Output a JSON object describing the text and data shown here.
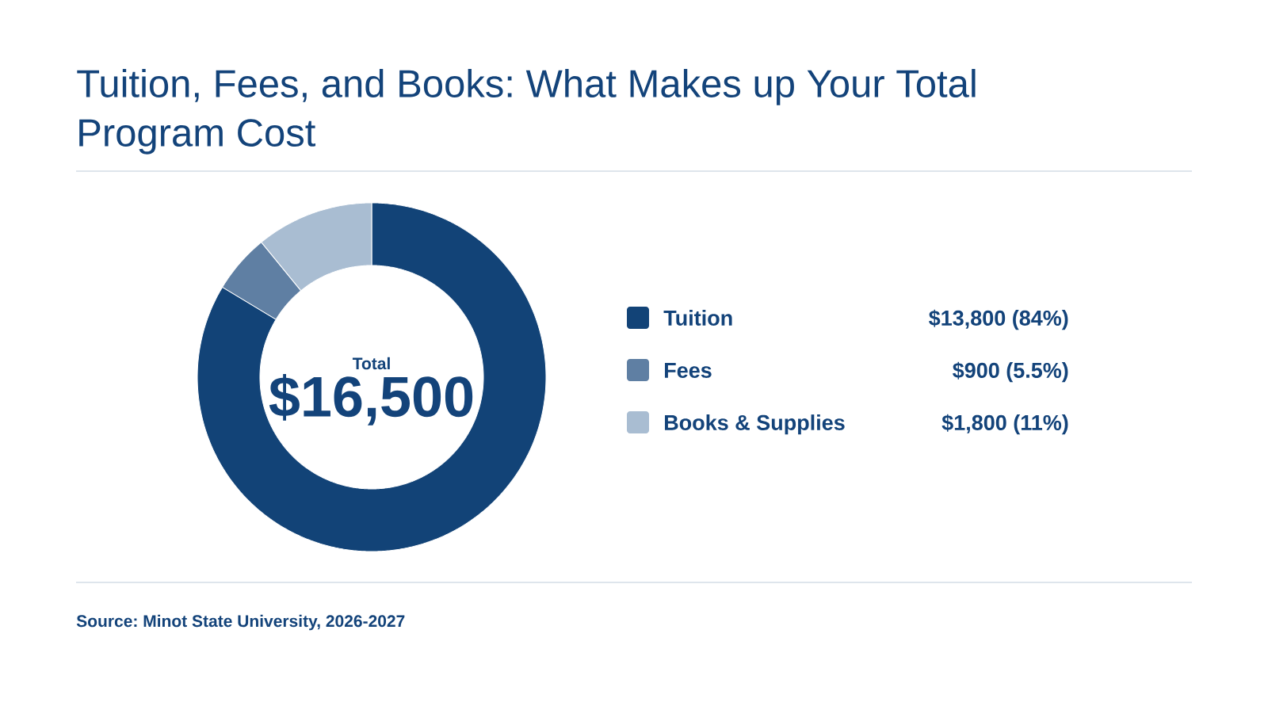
{
  "chart_data": {
    "type": "donut",
    "title": "Tuition, Fees, and Books: What Makes up Your Total Program Cost",
    "categories": [
      "Tuition",
      "Fees",
      "Books & Supplies"
    ],
    "values": [
      13800,
      900,
      1800
    ],
    "colors": [
      "#124377",
      "#5f7fa3",
      "#a9bdd2"
    ],
    "value_labels": [
      "$13,800 (84%)",
      "$900 (5.5%)",
      "$1,800 (11%)"
    ],
    "totals": [
      "$16,500"
    ],
    "legend": "right",
    "annotations": [
      "Total",
      "Source: Minot State University, 2026-2027"
    ]
  }
}
